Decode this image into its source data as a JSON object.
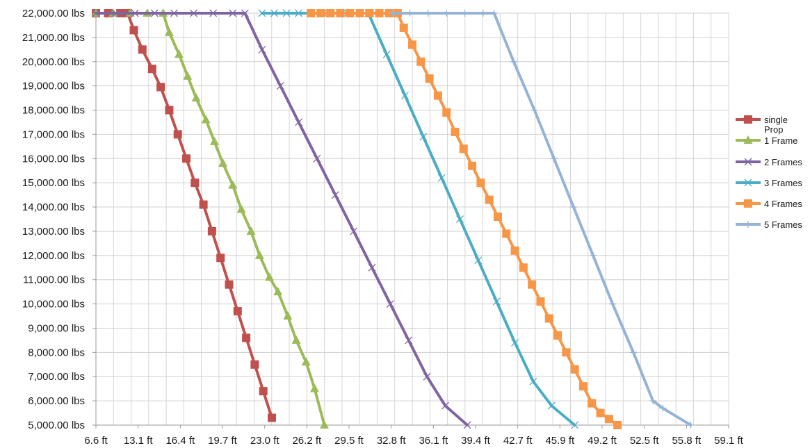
{
  "chart_data": {
    "type": "line",
    "title": "",
    "xlabel": "",
    "ylabel": "",
    "grid": true,
    "legend_position": "right",
    "x_ticks": [
      "6.6 ft",
      "13.1 ft",
      "16.4 ft",
      "19.7 ft",
      "23.0 ft",
      "26.2 ft",
      "29.5 ft",
      "32.8 ft",
      "36.1 ft",
      "39.4 ft",
      "42.7 ft",
      "45.9 ft",
      "49.2 ft",
      "52.5 ft",
      "55.8 ft",
      "59.1 ft"
    ],
    "y_ticks": [
      "22,000.00 lbs",
      "21,000.00 lbs",
      "20,000.00 lbs",
      "19,000.00 lbs",
      "18,000.00 lbs",
      "17,000.00 lbs",
      "16,000.00 lbs",
      "15,000.00 lbs",
      "14,000.00 lbs",
      "13,000.00 lbs",
      "12,000.00 lbs",
      "11,000.00 lbs",
      "10,000.00 lbs",
      "9,000.00 lbs",
      "8,000.00 lbs",
      "7,000.00 lbs",
      "6,000.00 lbs",
      "5,000.00 lbs"
    ],
    "xlim": [
      9.8,
      61.6
    ],
    "ylim": [
      5000,
      22000
    ],
    "series": [
      {
        "name": "single Prop",
        "color": "#c0504d",
        "marker": "square",
        "points": [
          [
            9.8,
            22000
          ],
          [
            10.8,
            22000
          ],
          [
            11.8,
            22000
          ],
          [
            12.4,
            22000
          ],
          [
            12.9,
            21300
          ],
          [
            13.6,
            20500
          ],
          [
            14.4,
            19700
          ],
          [
            15.1,
            18950
          ],
          [
            15.8,
            18000
          ],
          [
            16.5,
            17000
          ],
          [
            17.2,
            16000
          ],
          [
            17.9,
            15000
          ],
          [
            18.6,
            14100
          ],
          [
            19.3,
            13000
          ],
          [
            20.0,
            11900
          ],
          [
            20.7,
            10800
          ],
          [
            21.4,
            9700
          ],
          [
            22.1,
            8600
          ],
          [
            22.8,
            7500
          ],
          [
            23.5,
            6400
          ],
          [
            24.2,
            5300
          ]
        ]
      },
      {
        "name": "1 Frame",
        "color": "#9bbb59",
        "marker": "triangle",
        "points": [
          [
            9.8,
            22000
          ],
          [
            11.2,
            22000
          ],
          [
            12.6,
            22000
          ],
          [
            14.0,
            22000
          ],
          [
            15.3,
            22000
          ],
          [
            15.8,
            21200
          ],
          [
            16.6,
            20300
          ],
          [
            17.3,
            19400
          ],
          [
            18.0,
            18500
          ],
          [
            18.8,
            17600
          ],
          [
            19.5,
            16700
          ],
          [
            20.2,
            15800
          ],
          [
            21.0,
            14900
          ],
          [
            21.7,
            13900
          ],
          [
            22.5,
            13000
          ],
          [
            23.2,
            12000
          ],
          [
            24.0,
            11100
          ],
          [
            24.7,
            10500
          ],
          [
            25.5,
            9500
          ],
          [
            26.2,
            8500
          ],
          [
            27.0,
            7600
          ],
          [
            27.7,
            6500
          ],
          [
            28.5,
            5000
          ]
        ]
      },
      {
        "name": "2 Frames",
        "color": "#8064a2",
        "marker": "x",
        "points": [
          [
            9.8,
            22000
          ],
          [
            11.4,
            22000
          ],
          [
            13.0,
            22000
          ],
          [
            14.6,
            22000
          ],
          [
            16.2,
            22000
          ],
          [
            17.8,
            22000
          ],
          [
            19.4,
            22000
          ],
          [
            21.0,
            22000
          ],
          [
            22.0,
            22000
          ],
          [
            23.4,
            20500
          ],
          [
            24.9,
            19000
          ],
          [
            26.4,
            17500
          ],
          [
            27.9,
            16000
          ],
          [
            29.4,
            14500
          ],
          [
            30.9,
            13000
          ],
          [
            32.4,
            11500
          ],
          [
            33.9,
            10000
          ],
          [
            35.4,
            8500
          ],
          [
            36.9,
            7000
          ],
          [
            38.4,
            5800
          ],
          [
            40.2,
            5000
          ]
        ]
      },
      {
        "name": "3 Frames",
        "color": "#4bacc6",
        "marker": "x",
        "points": [
          [
            23.4,
            22000
          ],
          [
            24.4,
            22000
          ],
          [
            25.4,
            22000
          ],
          [
            26.4,
            22000
          ],
          [
            27.4,
            22000
          ],
          [
            28.4,
            22000
          ],
          [
            29.4,
            22000
          ],
          [
            30.4,
            22000
          ],
          [
            31.4,
            22000
          ],
          [
            32.1,
            22000
          ],
          [
            33.6,
            20300
          ],
          [
            35.1,
            18600
          ],
          [
            36.6,
            16900
          ],
          [
            38.1,
            15200
          ],
          [
            39.6,
            13500
          ],
          [
            41.1,
            11800
          ],
          [
            42.6,
            10100
          ],
          [
            44.1,
            8400
          ],
          [
            45.6,
            6800
          ],
          [
            47.1,
            5800
          ],
          [
            49.0,
            5000
          ]
        ]
      },
      {
        "name": "4 Frames",
        "color": "#f79646",
        "marker": "square",
        "points": [
          [
            27.4,
            22000
          ],
          [
            28.2,
            22000
          ],
          [
            29.0,
            22000
          ],
          [
            29.8,
            22000
          ],
          [
            30.6,
            22000
          ],
          [
            31.4,
            22000
          ],
          [
            32.2,
            22000
          ],
          [
            33.0,
            22000
          ],
          [
            33.8,
            22000
          ],
          [
            34.5,
            22000
          ],
          [
            35.0,
            21400
          ],
          [
            35.7,
            20700
          ],
          [
            36.4,
            20000
          ],
          [
            37.1,
            19300
          ],
          [
            37.8,
            18600
          ],
          [
            38.5,
            17900
          ],
          [
            39.2,
            17100
          ],
          [
            39.9,
            16400
          ],
          [
            40.6,
            15700
          ],
          [
            41.3,
            15000
          ],
          [
            42.0,
            14300
          ],
          [
            42.7,
            13600
          ],
          [
            43.4,
            12900
          ],
          [
            44.1,
            12200
          ],
          [
            44.8,
            11500
          ],
          [
            45.5,
            10800
          ],
          [
            46.2,
            10100
          ],
          [
            46.9,
            9400
          ],
          [
            47.6,
            8700
          ],
          [
            48.3,
            8000
          ],
          [
            49.0,
            7300
          ],
          [
            49.7,
            6600
          ],
          [
            50.4,
            5900
          ],
          [
            51.1,
            5500
          ],
          [
            51.8,
            5250
          ],
          [
            52.5,
            5000
          ]
        ]
      },
      {
        "name": "5 Frames",
        "color": "#95b3d7",
        "marker": "plus",
        "points": [
          [
            34.1,
            22000
          ],
          [
            35.5,
            22000
          ],
          [
            37.0,
            22000
          ],
          [
            38.5,
            22000
          ],
          [
            40.0,
            22000
          ],
          [
            41.5,
            22000
          ],
          [
            42.4,
            22000
          ],
          [
            44.0,
            20000
          ],
          [
            45.7,
            18000
          ],
          [
            47.3,
            16000
          ],
          [
            48.9,
            14000
          ],
          [
            50.5,
            12000
          ],
          [
            52.1,
            10000
          ],
          [
            53.8,
            8000
          ],
          [
            55.4,
            6000
          ],
          [
            56.2,
            5700
          ],
          [
            58.5,
            5000
          ]
        ]
      }
    ]
  }
}
